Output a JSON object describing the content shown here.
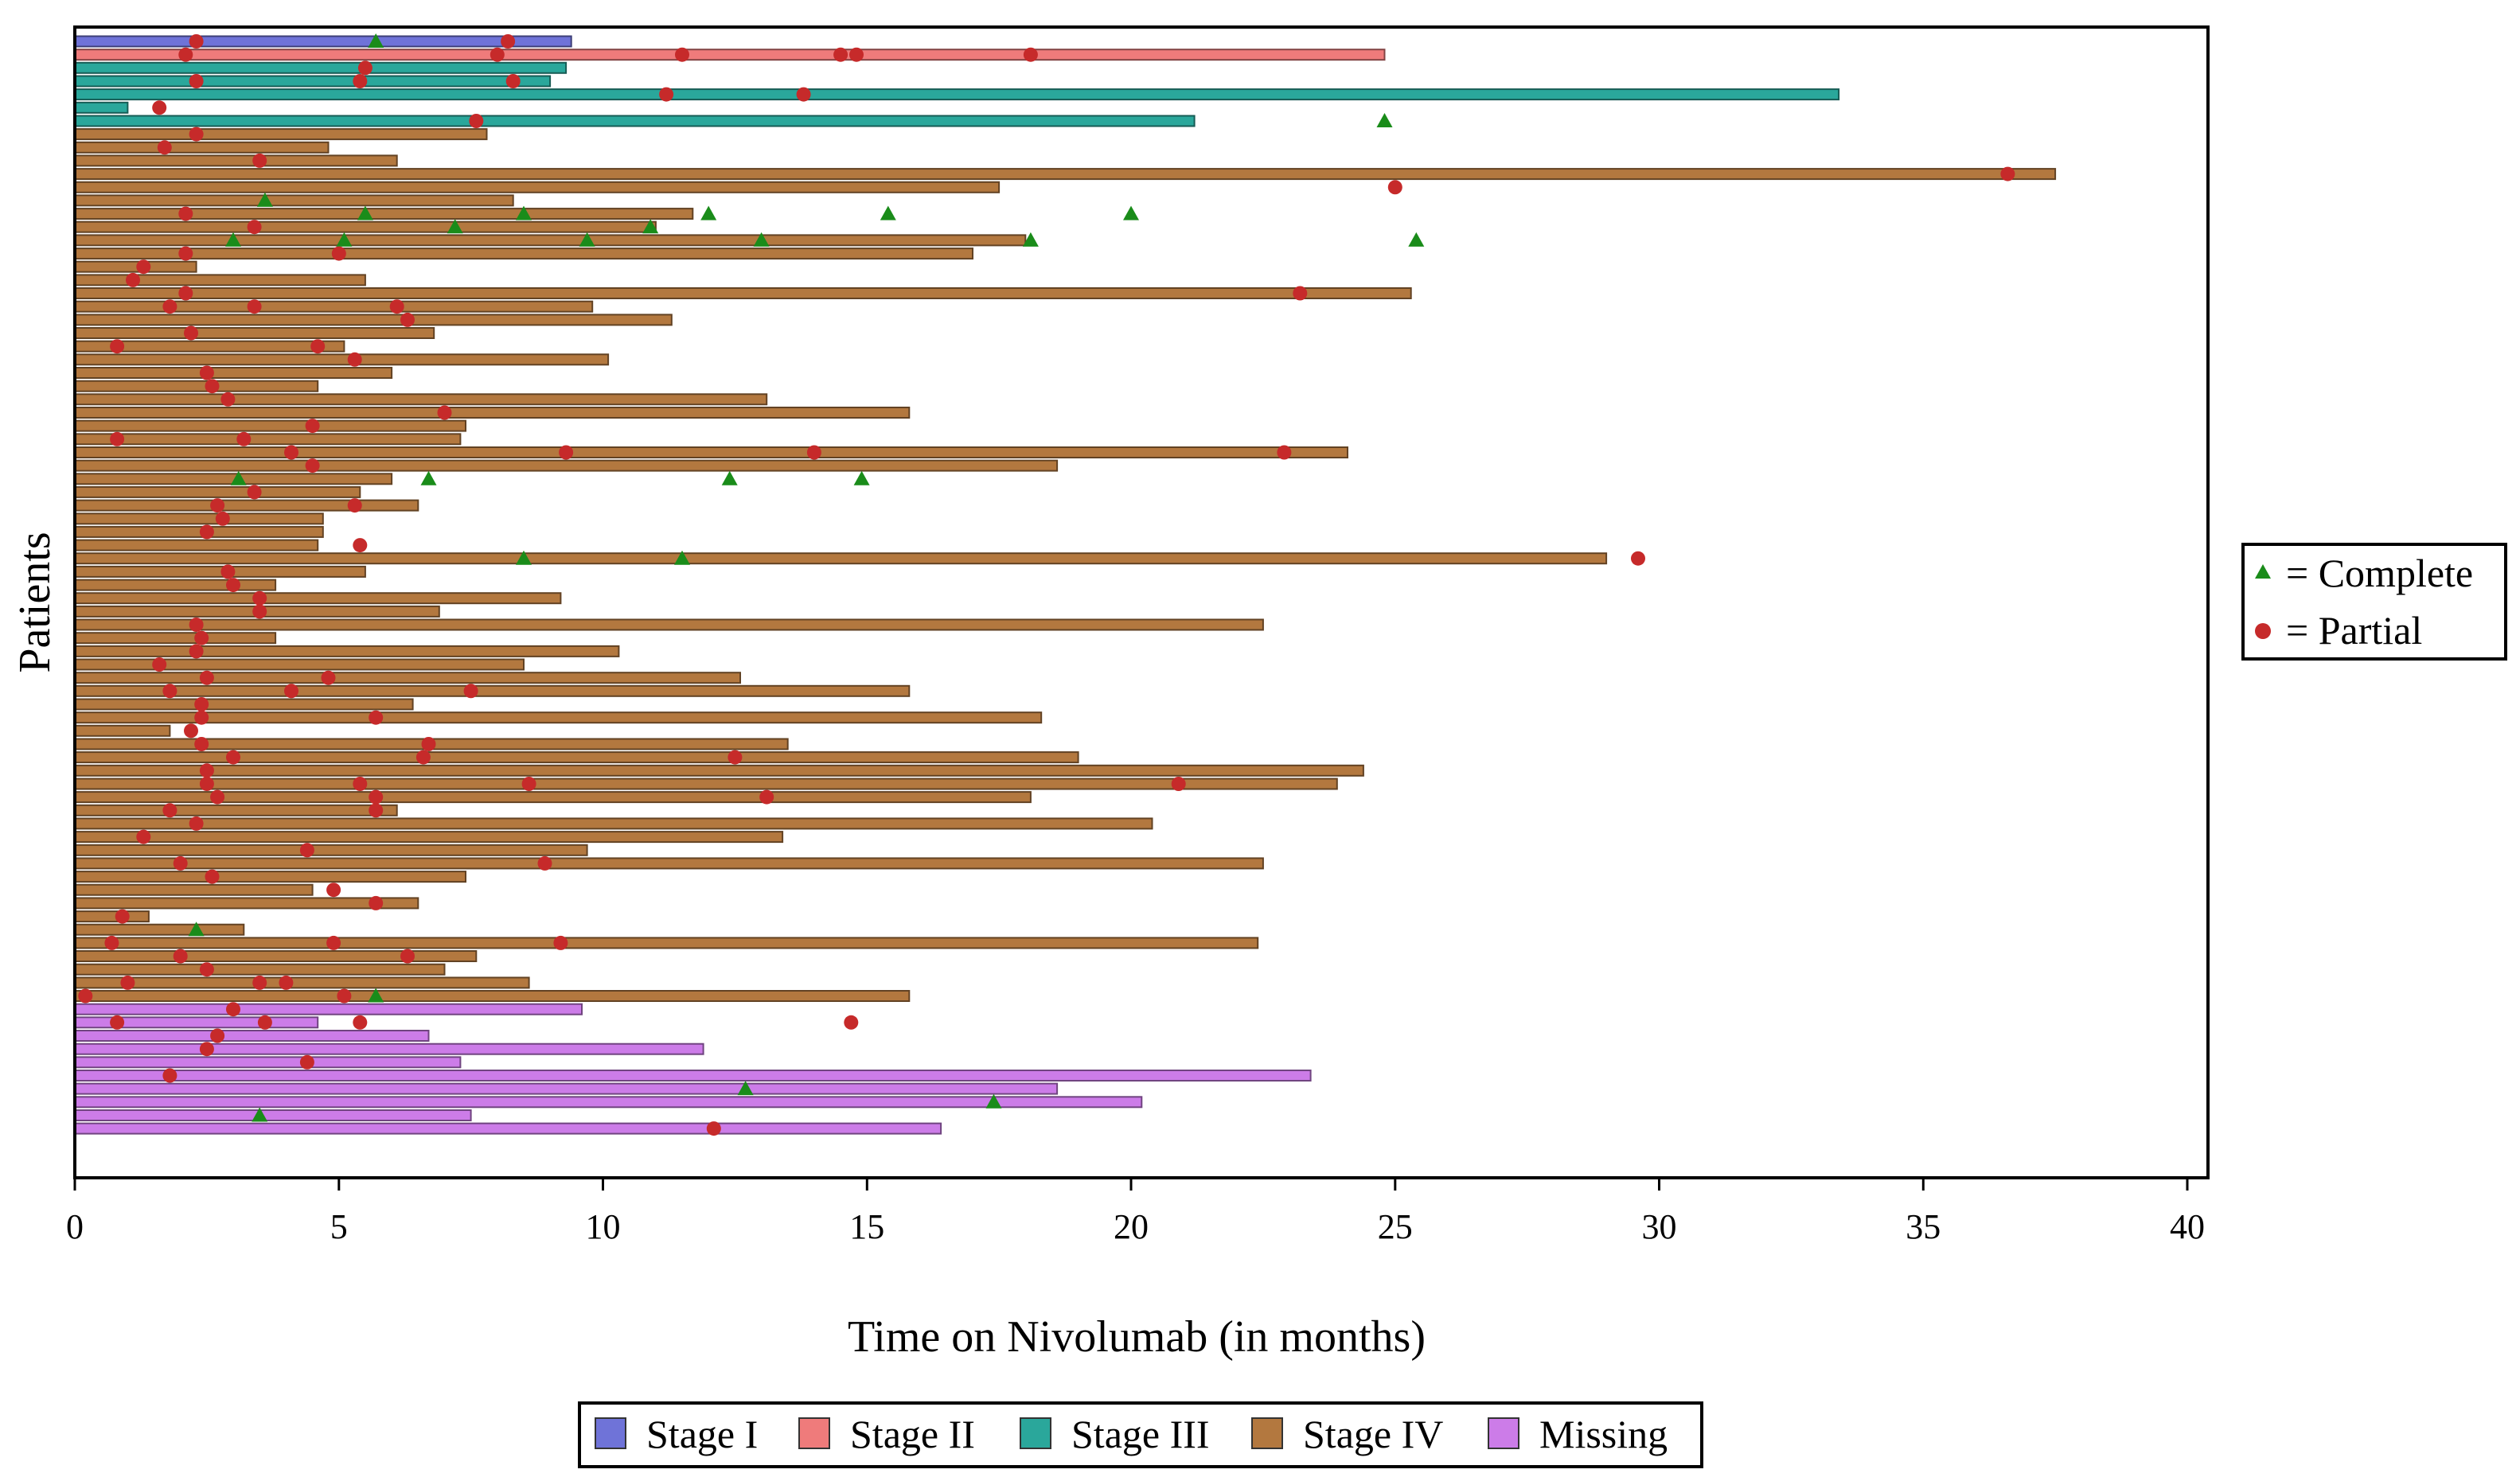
{
  "chart_data": {
    "type": "swimmer",
    "xlabel": "Time on Nivolumab (in months)",
    "ylabel": "Patients",
    "xlim": [
      0,
      40
    ],
    "xticks": [
      0,
      5,
      10,
      15,
      20,
      25,
      30,
      35,
      40
    ],
    "stage_colors": {
      "Stage I": "#6f73d8",
      "Stage II": "#ef7b7b",
      "Stage III": "#2aa79b",
      "Stage IV": "#b3783f",
      "Missing": "#cc7ce8"
    },
    "stage_legend": [
      "Stage I",
      "Stage II",
      "Stage III",
      "Stage IV",
      "Missing"
    ],
    "response_legend": [
      {
        "marker": "triangle",
        "color": "#1a8c1a",
        "label": "= Complete"
      },
      {
        "marker": "circle",
        "color": "#c62a2a",
        "label": "= Partial"
      }
    ],
    "patients": [
      {
        "stage": "Stage I",
        "duration": 9.4,
        "complete": [
          5.7
        ],
        "partial": [
          2.3,
          8.2
        ]
      },
      {
        "stage": "Stage II",
        "duration": 24.8,
        "complete": [],
        "partial": [
          2.1,
          8.0,
          11.5,
          14.5,
          14.8,
          18.1
        ]
      },
      {
        "stage": "Stage III",
        "duration": 9.3,
        "complete": [],
        "partial": [
          5.5
        ]
      },
      {
        "stage": "Stage III",
        "duration": 9.0,
        "complete": [],
        "partial": [
          2.3,
          5.4,
          8.3
        ]
      },
      {
        "stage": "Stage III",
        "duration": 33.4,
        "complete": [],
        "partial": [
          11.2,
          13.8
        ]
      },
      {
        "stage": "Stage III",
        "duration": 1.0,
        "complete": [],
        "partial": [
          1.6
        ]
      },
      {
        "stage": "Stage III",
        "duration": 21.2,
        "complete": [
          24.8
        ],
        "partial": [
          7.6
        ]
      },
      {
        "stage": "Stage IV",
        "duration": 7.8,
        "complete": [],
        "partial": [
          2.3
        ]
      },
      {
        "stage": "Stage IV",
        "duration": 4.8,
        "complete": [],
        "partial": [
          1.7
        ]
      },
      {
        "stage": "Stage IV",
        "duration": 6.1,
        "complete": [],
        "partial": [
          3.5
        ]
      },
      {
        "stage": "Stage IV",
        "duration": 37.5,
        "complete": [],
        "partial": [
          36.6
        ]
      },
      {
        "stage": "Stage IV",
        "duration": 17.5,
        "complete": [],
        "partial": [
          25.0
        ]
      },
      {
        "stage": "Stage IV",
        "duration": 8.3,
        "complete": [
          3.6
        ],
        "partial": []
      },
      {
        "stage": "Stage IV",
        "duration": 11.7,
        "complete": [
          5.5,
          8.5,
          12.0,
          15.4,
          20.0
        ],
        "partial": [
          2.1
        ]
      },
      {
        "stage": "Stage IV",
        "duration": 11.0,
        "complete": [
          7.2,
          10.9
        ],
        "partial": [
          3.4
        ]
      },
      {
        "stage": "Stage IV",
        "duration": 18.0,
        "complete": [
          3.0,
          5.1,
          9.7,
          13.0,
          18.1,
          25.4
        ],
        "partial": []
      },
      {
        "stage": "Stage IV",
        "duration": 17.0,
        "complete": [],
        "partial": [
          2.1,
          5.0
        ]
      },
      {
        "stage": "Stage IV",
        "duration": 2.3,
        "complete": [],
        "partial": [
          1.3
        ]
      },
      {
        "stage": "Stage IV",
        "duration": 5.5,
        "complete": [],
        "partial": [
          1.1
        ]
      },
      {
        "stage": "Stage IV",
        "duration": 25.3,
        "complete": [],
        "partial": [
          2.1,
          23.2
        ]
      },
      {
        "stage": "Stage IV",
        "duration": 9.8,
        "complete": [],
        "partial": [
          1.8,
          3.4,
          6.1
        ]
      },
      {
        "stage": "Stage IV",
        "duration": 11.3,
        "complete": [],
        "partial": [
          6.3
        ]
      },
      {
        "stage": "Stage IV",
        "duration": 6.8,
        "complete": [],
        "partial": [
          2.2
        ]
      },
      {
        "stage": "Stage IV",
        "duration": 5.1,
        "complete": [],
        "partial": [
          0.8,
          4.6
        ]
      },
      {
        "stage": "Stage IV",
        "duration": 10.1,
        "complete": [],
        "partial": [
          5.3
        ]
      },
      {
        "stage": "Stage IV",
        "duration": 6.0,
        "complete": [],
        "partial": [
          2.5
        ]
      },
      {
        "stage": "Stage IV",
        "duration": 4.6,
        "complete": [],
        "partial": [
          2.6
        ]
      },
      {
        "stage": "Stage IV",
        "duration": 13.1,
        "complete": [],
        "partial": [
          2.9
        ]
      },
      {
        "stage": "Stage IV",
        "duration": 15.8,
        "complete": [],
        "partial": [
          7.0
        ]
      },
      {
        "stage": "Stage IV",
        "duration": 7.4,
        "complete": [],
        "partial": [
          4.5
        ]
      },
      {
        "stage": "Stage IV",
        "duration": 7.3,
        "complete": [],
        "partial": [
          0.8,
          3.2
        ]
      },
      {
        "stage": "Stage IV",
        "duration": 24.1,
        "complete": [],
        "partial": [
          4.1,
          9.3,
          14.0,
          22.9
        ]
      },
      {
        "stage": "Stage IV",
        "duration": 18.6,
        "complete": [],
        "partial": [
          4.5
        ]
      },
      {
        "stage": "Stage IV",
        "duration": 6.0,
        "complete": [
          3.1,
          6.7,
          12.4,
          14.9
        ],
        "partial": []
      },
      {
        "stage": "Stage IV",
        "duration": 5.4,
        "complete": [],
        "partial": [
          3.4
        ]
      },
      {
        "stage": "Stage IV",
        "duration": 6.5,
        "complete": [],
        "partial": [
          2.7,
          5.3
        ]
      },
      {
        "stage": "Stage IV",
        "duration": 4.7,
        "complete": [],
        "partial": [
          2.8
        ]
      },
      {
        "stage": "Stage IV",
        "duration": 4.7,
        "complete": [],
        "partial": [
          2.5
        ]
      },
      {
        "stage": "Stage IV",
        "duration": 4.6,
        "complete": [],
        "partial": [
          5.4
        ]
      },
      {
        "stage": "Stage IV",
        "duration": 29.0,
        "complete": [
          8.5,
          11.5
        ],
        "partial": [
          29.6
        ]
      },
      {
        "stage": "Stage IV",
        "duration": 5.5,
        "complete": [],
        "partial": [
          2.9
        ]
      },
      {
        "stage": "Stage IV",
        "duration": 3.8,
        "complete": [],
        "partial": [
          3.0
        ]
      },
      {
        "stage": "Stage IV",
        "duration": 9.2,
        "complete": [],
        "partial": [
          3.5
        ]
      },
      {
        "stage": "Stage IV",
        "duration": 6.9,
        "complete": [],
        "partial": [
          3.5
        ]
      },
      {
        "stage": "Stage IV",
        "duration": 22.5,
        "complete": [],
        "partial": [
          2.3
        ]
      },
      {
        "stage": "Stage IV",
        "duration": 3.8,
        "complete": [],
        "partial": [
          2.4
        ]
      },
      {
        "stage": "Stage IV",
        "duration": 10.3,
        "complete": [],
        "partial": [
          2.3
        ]
      },
      {
        "stage": "Stage IV",
        "duration": 8.5,
        "complete": [],
        "partial": [
          1.6
        ]
      },
      {
        "stage": "Stage IV",
        "duration": 12.6,
        "complete": [],
        "partial": [
          2.5,
          4.8
        ]
      },
      {
        "stage": "Stage IV",
        "duration": 15.8,
        "complete": [],
        "partial": [
          1.8,
          4.1,
          7.5
        ]
      },
      {
        "stage": "Stage IV",
        "duration": 6.4,
        "complete": [],
        "partial": [
          2.4
        ]
      },
      {
        "stage": "Stage IV",
        "duration": 18.3,
        "complete": [],
        "partial": [
          2.4,
          5.7
        ]
      },
      {
        "stage": "Stage IV",
        "duration": 1.8,
        "complete": [],
        "partial": [
          2.2
        ]
      },
      {
        "stage": "Stage IV",
        "duration": 13.5,
        "complete": [],
        "partial": [
          2.4,
          6.7
        ]
      },
      {
        "stage": "Stage IV",
        "duration": 19.0,
        "complete": [],
        "partial": [
          3.0,
          6.6,
          12.5
        ]
      },
      {
        "stage": "Stage IV",
        "duration": 24.4,
        "complete": [],
        "partial": [
          2.5
        ]
      },
      {
        "stage": "Stage IV",
        "duration": 23.9,
        "complete": [],
        "partial": [
          2.5,
          5.4,
          8.6,
          20.9
        ]
      },
      {
        "stage": "Stage IV",
        "duration": 18.1,
        "complete": [],
        "partial": [
          2.7,
          5.7,
          13.1
        ]
      },
      {
        "stage": "Stage IV",
        "duration": 6.1,
        "complete": [],
        "partial": [
          1.8,
          5.7
        ]
      },
      {
        "stage": "Stage IV",
        "duration": 20.4,
        "complete": [],
        "partial": [
          2.3
        ]
      },
      {
        "stage": "Stage IV",
        "duration": 13.4,
        "complete": [],
        "partial": [
          1.3
        ]
      },
      {
        "stage": "Stage IV",
        "duration": 9.7,
        "complete": [],
        "partial": [
          4.4
        ]
      },
      {
        "stage": "Stage IV",
        "duration": 22.5,
        "complete": [],
        "partial": [
          2.0,
          8.9
        ]
      },
      {
        "stage": "Stage IV",
        "duration": 7.4,
        "complete": [],
        "partial": [
          2.6
        ]
      },
      {
        "stage": "Stage IV",
        "duration": 4.5,
        "complete": [],
        "partial": [
          4.9
        ]
      },
      {
        "stage": "Stage IV",
        "duration": 6.5,
        "complete": [],
        "partial": [
          5.7
        ]
      },
      {
        "stage": "Stage IV",
        "duration": 1.4,
        "complete": [],
        "partial": [
          0.9
        ]
      },
      {
        "stage": "Stage IV",
        "duration": 3.2,
        "complete": [
          2.3
        ],
        "partial": []
      },
      {
        "stage": "Stage IV",
        "duration": 22.4,
        "complete": [],
        "partial": [
          0.7,
          4.9,
          9.2
        ]
      },
      {
        "stage": "Stage IV",
        "duration": 7.6,
        "complete": [],
        "partial": [
          2.0,
          6.3
        ]
      },
      {
        "stage": "Stage IV",
        "duration": 7.0,
        "complete": [],
        "partial": [
          2.5
        ]
      },
      {
        "stage": "Stage IV",
        "duration": 8.6,
        "complete": [],
        "partial": [
          1.0,
          3.5,
          4.0
        ]
      },
      {
        "stage": "Stage IV",
        "duration": 15.8,
        "complete": [
          5.7
        ],
        "partial": [
          0.2,
          5.1
        ]
      },
      {
        "stage": "Missing",
        "duration": 9.6,
        "complete": [],
        "partial": [
          3.0
        ]
      },
      {
        "stage": "Missing",
        "duration": 4.6,
        "complete": [],
        "partial": [
          0.8,
          3.6,
          5.4,
          14.7
        ]
      },
      {
        "stage": "Missing",
        "duration": 6.7,
        "complete": [],
        "partial": [
          2.7
        ]
      },
      {
        "stage": "Missing",
        "duration": 11.9,
        "complete": [],
        "partial": [
          2.5
        ]
      },
      {
        "stage": "Missing",
        "duration": 7.3,
        "complete": [],
        "partial": [
          4.4
        ]
      },
      {
        "stage": "Missing",
        "duration": 23.4,
        "complete": [],
        "partial": [
          1.8
        ]
      },
      {
        "stage": "Missing",
        "duration": 18.6,
        "complete": [
          12.7
        ],
        "partial": []
      },
      {
        "stage": "Missing",
        "duration": 20.2,
        "complete": [
          17.4
        ],
        "partial": []
      },
      {
        "stage": "Missing",
        "duration": 7.5,
        "complete": [
          3.5
        ],
        "partial": []
      },
      {
        "stage": "Missing",
        "duration": 16.4,
        "complete": [],
        "partial": [
          12.1
        ]
      }
    ]
  }
}
